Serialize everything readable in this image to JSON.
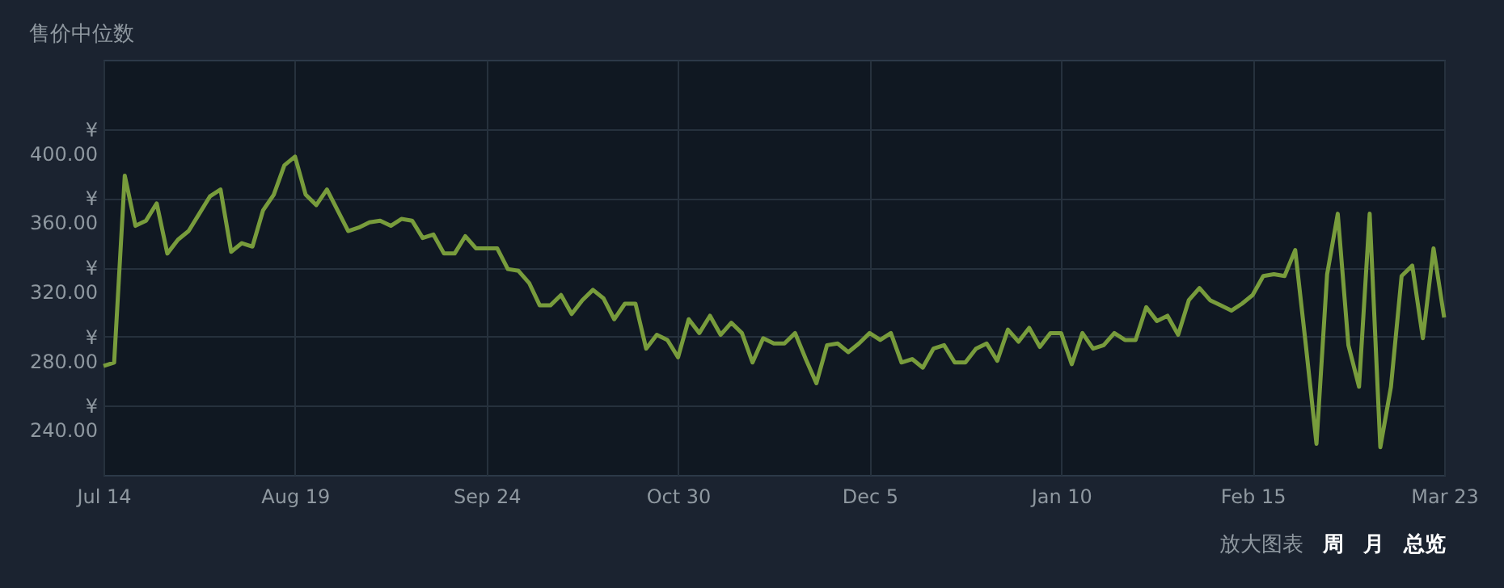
{
  "chart_data": {
    "type": "line",
    "title": "售价中位数",
    "annotations": [
      "放大图表",
      "周",
      "月",
      "总览"
    ],
    "categories": [
      "Jul 14",
      null,
      null,
      null,
      null,
      null,
      null,
      null,
      null,
      null,
      null,
      null,
      null,
      null,
      null,
      null,
      null,
      null,
      "Aug 19",
      null,
      null,
      null,
      null,
      null,
      null,
      null,
      null,
      null,
      null,
      null,
      null,
      null,
      null,
      null,
      null,
      null,
      "Sep 24",
      null,
      null,
      null,
      null,
      null,
      null,
      null,
      null,
      null,
      null,
      null,
      null,
      null,
      null,
      null,
      null,
      null,
      "Oct 30",
      null,
      null,
      null,
      null,
      null,
      null,
      null,
      null,
      null,
      null,
      null,
      null,
      null,
      null,
      null,
      null,
      null,
      "Dec 5",
      null,
      null,
      null,
      null,
      null,
      null,
      null,
      null,
      null,
      null,
      null,
      null,
      null,
      null,
      null,
      null,
      null,
      "Jan 10",
      null,
      null,
      null,
      null,
      null,
      null,
      null,
      null,
      null,
      null,
      null,
      null,
      null,
      null,
      null,
      null,
      null,
      "Feb 15",
      null,
      null,
      null,
      null,
      null,
      null,
      null,
      null,
      null,
      null,
      null,
      null,
      null,
      null,
      null,
      null,
      null,
      "Mar 23"
    ],
    "series": [
      {
        "color": "#789c3c",
        "values": [
          263,
          265,
          373,
          344,
          347,
          357,
          328,
          336,
          341,
          351,
          361,
          365,
          329,
          334,
          332,
          353,
          362,
          379,
          384,
          362,
          356,
          365,
          353,
          341,
          343,
          346,
          347,
          344,
          348,
          347,
          337,
          339,
          328,
          328,
          338,
          331,
          331,
          331,
          319,
          318,
          311,
          298,
          298,
          304,
          293,
          301,
          307,
          302,
          290,
          299,
          299,
          273,
          281,
          278,
          268,
          290,
          282,
          292,
          281,
          288,
          282,
          265,
          279,
          276,
          276,
          282,
          267,
          253,
          275,
          276,
          271,
          276,
          282,
          278,
          282,
          265,
          267,
          262,
          273,
          275,
          265,
          265,
          273,
          276,
          266,
          284,
          277,
          285,
          274,
          282,
          282,
          264,
          282,
          273,
          275,
          282,
          278,
          278,
          297,
          289,
          292,
          281,
          301,
          308,
          301,
          298,
          295,
          299,
          304,
          315,
          316,
          315,
          330,
          275,
          218,
          316,
          351,
          275,
          251,
          351,
          216,
          251,
          315,
          321,
          279,
          331,
          291
        ]
      }
    ],
    "ylim": [
      200,
      440
    ],
    "yticks": [
      {
        "value": 240,
        "label": "¥240.00"
      },
      {
        "value": 280,
        "label": "¥280.00"
      },
      {
        "value": 320,
        "label": "¥320.00"
      },
      {
        "value": 360,
        "label": "¥360.00"
      },
      {
        "value": 400,
        "label": "¥400.00"
      }
    ],
    "grid": true,
    "line_style": "solid"
  }
}
